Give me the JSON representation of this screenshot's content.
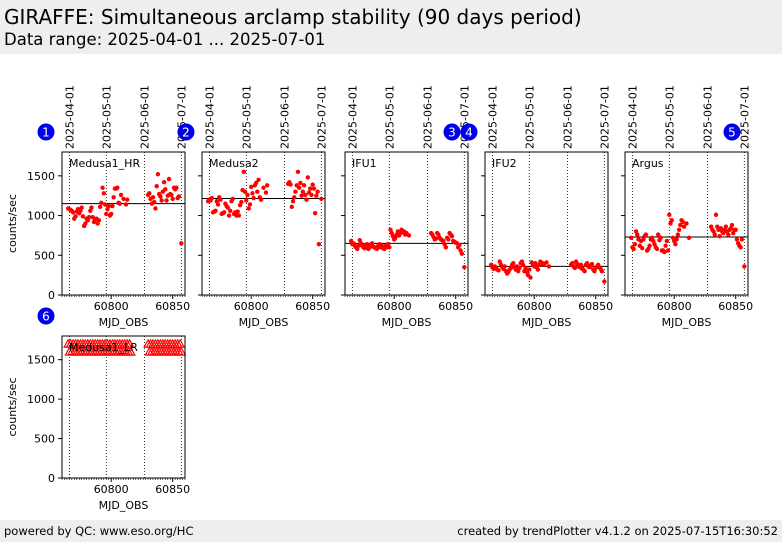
{
  "header": {
    "title": "GIRAFFE: Simultaneous arclamp stability (90 days period)",
    "subtitle": "Data range: 2025-04-01 ... 2025-07-01"
  },
  "footer": {
    "left": "powered by QC: www.eso.org/HC",
    "right": "created by trendPlotter v4.1.2 on 2025-07-15T16:30:52"
  },
  "colors": {
    "points": "#ff0000",
    "badge": "#0000ee",
    "panel_bg": "#eeeeee"
  },
  "chart_data": [
    {
      "type": "scatter",
      "panel": "1",
      "label": "Medusa1_HR",
      "xlabel": "MJD_OBS",
      "ylabel": "counts/sec",
      "xlim": [
        60760,
        60860
      ],
      "ylim": [
        0,
        1800
      ],
      "xticks": [
        60800,
        60850
      ],
      "yticks": [
        0,
        500,
        1000,
        1500
      ],
      "date_ticks": [
        {
          "label": "2025-04-01",
          "mjd": 60766
        },
        {
          "label": "2025-05-01",
          "mjd": 60796
        },
        {
          "label": "2025-06-01",
          "mjd": 60827
        },
        {
          "label": "2025-07-01",
          "mjd": 60857
        }
      ],
      "reference_line": 1150,
      "x": [
        60765,
        60766,
        60767,
        60768,
        60769,
        60770,
        60771,
        60772,
        60773,
        60774,
        60775,
        60776,
        60777,
        60778,
        60779,
        60780,
        60781,
        60782,
        60783,
        60784,
        60785,
        60786,
        60787,
        60788,
        60789,
        60790,
        60791,
        60792,
        60793,
        60794,
        60795,
        60796,
        60797,
        60798,
        60799,
        60800,
        60801,
        60802,
        60803,
        60804,
        60805,
        60806,
        60807,
        60808,
        60810,
        60812,
        60813,
        60830,
        60831,
        60832,
        60833,
        60834,
        60835,
        60836,
        60837,
        60838,
        60839,
        60840,
        60841,
        60842,
        60843,
        60844,
        60845,
        60846,
        60847,
        60848,
        60849,
        60850,
        60851,
        60852,
        60853,
        60854,
        60855,
        60857
      ],
      "y": [
        1090,
        1080,
        1070,
        1060,
        1040,
        960,
        990,
        1050,
        1080,
        1030,
        1060,
        1100,
        990,
        870,
        900,
        960,
        940,
        980,
        1060,
        1100,
        980,
        920,
        950,
        960,
        900,
        940,
        1110,
        1160,
        1350,
        1280,
        1140,
        1020,
        1080,
        1120,
        1000,
        1020,
        1120,
        1230,
        1340,
        1340,
        1350,
        1160,
        1150,
        1260,
        1210,
        1140,
        1200,
        1260,
        1280,
        1210,
        1150,
        1230,
        1170,
        1090,
        1370,
        1520,
        1270,
        1240,
        1190,
        1300,
        1420,
        1330,
        1190,
        1250,
        1460,
        1270,
        1260,
        1210,
        1350,
        1330,
        1350,
        1220,
        1240,
        650
      ]
    },
    {
      "type": "scatter",
      "panel": "2",
      "label": "Medusa2",
      "xlabel": "MJD_OBS",
      "ylabel": "",
      "xlim": [
        60760,
        60860
      ],
      "ylim": [
        0,
        1800
      ],
      "xticks": [
        60800,
        60850
      ],
      "yticks": [
        0,
        500,
        1000,
        1500
      ],
      "date_ticks": [
        {
          "label": "2025-04-01",
          "mjd": 60766
        },
        {
          "label": "2025-05-01",
          "mjd": 60796
        },
        {
          "label": "2025-06-01",
          "mjd": 60827
        },
        {
          "label": "2025-07-01",
          "mjd": 60857
        }
      ],
      "reference_line": 1215,
      "x": [
        60765,
        60766,
        60767,
        60768,
        60769,
        60770,
        60771,
        60772,
        60773,
        60774,
        60775,
        60776,
        60777,
        60778,
        60779,
        60780,
        60781,
        60782,
        60783,
        60784,
        60785,
        60786,
        60787,
        60788,
        60789,
        60790,
        60791,
        60792,
        60793,
        60794,
        60795,
        60796,
        60797,
        60798,
        60799,
        60800,
        60801,
        60802,
        60803,
        60804,
        60805,
        60806,
        60807,
        60808,
        60810,
        60812,
        60813,
        60830,
        60831,
        60832,
        60833,
        60834,
        60835,
        60836,
        60837,
        60838,
        60839,
        60840,
        60841,
        60842,
        60843,
        60844,
        60845,
        60846,
        60847,
        60848,
        60849,
        60850,
        60851,
        60852,
        60853,
        60854,
        60855,
        60857
      ],
      "y": [
        1180,
        1200,
        1190,
        1220,
        1040,
        1050,
        1060,
        1180,
        1140,
        1230,
        1200,
        1020,
        1030,
        1040,
        1150,
        1120,
        1100,
        1000,
        1060,
        1180,
        1210,
        1020,
        1040,
        1000,
        1050,
        1000,
        1130,
        1170,
        1320,
        1550,
        1300,
        1190,
        1260,
        1090,
        1140,
        1360,
        1280,
        1220,
        1380,
        1410,
        1300,
        1450,
        1230,
        1200,
        1350,
        1290,
        1380,
        1400,
        1420,
        1390,
        1110,
        1180,
        1230,
        1300,
        1380,
        1550,
        1350,
        1410,
        1250,
        1300,
        1380,
        1260,
        1200,
        1480,
        1290,
        1340,
        1260,
        1390,
        1340,
        1030,
        1250,
        1300,
        640,
        1210
      ]
    },
    {
      "type": "scatter",
      "panel": "3",
      "label": "IFU1",
      "xlabel": "MJD_OBS",
      "ylabel": "",
      "xlim": [
        60760,
        60860
      ],
      "ylim": [
        0,
        1800
      ],
      "xticks": [
        60800,
        60850
      ],
      "yticks": [
        0,
        500,
        1000,
        1500
      ],
      "date_ticks": [
        {
          "label": "2025-04-01",
          "mjd": 60766
        },
        {
          "label": "2025-05-01",
          "mjd": 60796
        },
        {
          "label": "2025-06-01",
          "mjd": 60827
        },
        {
          "label": "2025-07-01",
          "mjd": 60857
        }
      ],
      "reference_line": 650,
      "x": [
        60765,
        60766,
        60767,
        60768,
        60769,
        60770,
        60771,
        60772,
        60773,
        60774,
        60775,
        60776,
        60777,
        60778,
        60779,
        60780,
        60781,
        60782,
        60783,
        60784,
        60785,
        60786,
        60787,
        60788,
        60789,
        60790,
        60791,
        60792,
        60793,
        60794,
        60795,
        60796,
        60797,
        60798,
        60799,
        60800,
        60801,
        60802,
        60803,
        60804,
        60805,
        60806,
        60807,
        60808,
        60809,
        60810,
        60812,
        60830,
        60831,
        60832,
        60833,
        60834,
        60835,
        60836,
        60837,
        60838,
        60839,
        60840,
        60841,
        60842,
        60843,
        60844,
        60845,
        60846,
        60847,
        60848,
        60849,
        60850,
        60851,
        60852,
        60853,
        60854,
        60855,
        60857
      ],
      "y": [
        680,
        640,
        650,
        620,
        600,
        580,
        620,
        690,
        650,
        620,
        600,
        590,
        620,
        640,
        580,
        600,
        630,
        650,
        610,
        600,
        590,
        580,
        620,
        640,
        600,
        620,
        590,
        580,
        620,
        600,
        640,
        600,
        820,
        780,
        740,
        700,
        720,
        760,
        800,
        750,
        780,
        820,
        790,
        800,
        760,
        780,
        750,
        780,
        760,
        730,
        700,
        710,
        780,
        760,
        720,
        700,
        690,
        680,
        640,
        600,
        720,
        700,
        780,
        760,
        740,
        680,
        670,
        660,
        650,
        600,
        630,
        560,
        520,
        350
      ]
    },
    {
      "type": "scatter",
      "panel": "4",
      "label": "IFU2",
      "xlabel": "MJD_OBS",
      "ylabel": "",
      "xlim": [
        60760,
        60860
      ],
      "ylim": [
        0,
        1800
      ],
      "xticks": [
        60800,
        60850
      ],
      "yticks": [
        0,
        500,
        1000,
        1500
      ],
      "date_ticks": [
        {
          "label": "2025-04-01",
          "mjd": 60766
        },
        {
          "label": "2025-05-01",
          "mjd": 60796
        },
        {
          "label": "2025-06-01",
          "mjd": 60827
        },
        {
          "label": "2025-07-01",
          "mjd": 60857
        }
      ],
      "reference_line": 360,
      "x": [
        60765,
        60766,
        60767,
        60768,
        60769,
        60770,
        60771,
        60772,
        60773,
        60774,
        60775,
        60776,
        60777,
        60778,
        60779,
        60780,
        60781,
        60782,
        60783,
        60784,
        60785,
        60786,
        60787,
        60788,
        60789,
        60790,
        60791,
        60792,
        60793,
        60794,
        60795,
        60796,
        60797,
        60798,
        60799,
        60800,
        60801,
        60802,
        60803,
        60804,
        60805,
        60806,
        60807,
        60808,
        60810,
        60812,
        60830,
        60831,
        60832,
        60833,
        60834,
        60835,
        60836,
        60837,
        60838,
        60839,
        60840,
        60841,
        60842,
        60843,
        60844,
        60845,
        60846,
        60847,
        60848,
        60849,
        60850,
        60851,
        60852,
        60853,
        60854,
        60855,
        60857
      ],
      "y": [
        380,
        350,
        330,
        360,
        340,
        320,
        310,
        420,
        380,
        350,
        330,
        360,
        300,
        270,
        290,
        320,
        340,
        380,
        400,
        350,
        320,
        360,
        300,
        340,
        400,
        420,
        380,
        300,
        340,
        290,
        250,
        320,
        220,
        410,
        380,
        360,
        400,
        350,
        320,
        380,
        420,
        390,
        400,
        380,
        410,
        360,
        380,
        400,
        360,
        340,
        420,
        390,
        360,
        350,
        380,
        330,
        320,
        300,
        380,
        400,
        360,
        350,
        370,
        390,
        320,
        300,
        340,
        360,
        380,
        350,
        330,
        300,
        170
      ]
    },
    {
      "type": "scatter",
      "panel": "5",
      "label": "Argus",
      "xlabel": "MJD_OBS",
      "ylabel": "",
      "xlim": [
        60760,
        60860
      ],
      "ylim": [
        0,
        1800
      ],
      "xticks": [
        60800,
        60850
      ],
      "yticks": [
        0,
        500,
        1000,
        1500
      ],
      "date_ticks": [
        {
          "label": "2025-04-01",
          "mjd": 60766
        },
        {
          "label": "2025-05-01",
          "mjd": 60796
        },
        {
          "label": "2025-06-01",
          "mjd": 60827
        },
        {
          "label": "2025-07-01",
          "mjd": 60857
        }
      ],
      "reference_line": 730,
      "x": [
        60765,
        60766,
        60767,
        60768,
        60769,
        60770,
        60771,
        60772,
        60773,
        60774,
        60775,
        60776,
        60777,
        60778,
        60779,
        60780,
        60781,
        60782,
        60783,
        60784,
        60785,
        60786,
        60787,
        60788,
        60789,
        60790,
        60791,
        60792,
        60793,
        60794,
        60795,
        60796,
        60797,
        60798,
        60799,
        60800,
        60801,
        60802,
        60803,
        60804,
        60805,
        60806,
        60807,
        60808,
        60810,
        60812,
        60830,
        60831,
        60832,
        60833,
        60834,
        60835,
        60836,
        60837,
        60838,
        60839,
        60840,
        60841,
        60842,
        60843,
        60844,
        60845,
        60846,
        60847,
        60848,
        60849,
        60850,
        60851,
        60852,
        60853,
        60854,
        60855,
        60857
      ],
      "y": [
        720,
        600,
        580,
        640,
        800,
        760,
        700,
        620,
        680,
        590,
        700,
        740,
        760,
        560,
        580,
        620,
        700,
        720,
        680,
        640,
        600,
        580,
        760,
        690,
        720,
        560,
        560,
        540,
        620,
        680,
        560,
        1010,
        900,
        940,
        720,
        680,
        640,
        700,
        760,
        820,
        880,
        940,
        920,
        860,
        900,
        720,
        860,
        820,
        800,
        760,
        1010,
        860,
        820,
        740,
        840,
        800,
        780,
        820,
        860,
        800,
        760,
        820,
        840,
        880,
        780,
        820,
        820,
        700,
        650,
        620,
        600,
        700,
        360
      ]
    },
    {
      "type": "scatter",
      "panel": "6",
      "label": "Medusa1_LR",
      "xlabel": "MJD_OBS",
      "ylabel": "counts/sec",
      "xlim": [
        60760,
        60860
      ],
      "ylim": [
        0,
        1800
      ],
      "xticks": [
        60800,
        60850
      ],
      "yticks": [
        0,
        500,
        1000,
        1500
      ],
      "date_ticks": [
        {
          "label": "2025-04-01",
          "mjd": 60766
        },
        {
          "label": "2025-05-01",
          "mjd": 60796
        },
        {
          "label": "2025-06-01",
          "mjd": 60827
        },
        {
          "label": "2025-07-01",
          "mjd": 60857
        }
      ],
      "reference_line": null,
      "marker": "open-triangle-up",
      "x": [
        60765,
        60766,
        60767,
        60768,
        60769,
        60770,
        60771,
        60772,
        60773,
        60774,
        60775,
        60776,
        60777,
        60778,
        60779,
        60780,
        60781,
        60782,
        60783,
        60784,
        60785,
        60786,
        60787,
        60788,
        60789,
        60790,
        60791,
        60792,
        60793,
        60794,
        60795,
        60796,
        60797,
        60798,
        60799,
        60800,
        60801,
        60802,
        60803,
        60804,
        60805,
        60806,
        60807,
        60808,
        60809,
        60810,
        60811,
        60812,
        60813,
        60814,
        60815,
        60816,
        60830,
        60831,
        60832,
        60833,
        60834,
        60835,
        60836,
        60837,
        60838,
        60839,
        60840,
        60841,
        60842,
        60843,
        60844,
        60845,
        60846,
        60847,
        60848,
        60849,
        60850,
        60851,
        60852,
        60853,
        60854,
        60855,
        60856,
        60857
      ],
      "y": [
        1700,
        1600,
        1700,
        1600,
        1700,
        1600,
        1700,
        1600,
        1700,
        1600,
        1700,
        1600,
        1700,
        1600,
        1700,
        1600,
        1700,
        1600,
        1700,
        1600,
        1700,
        1600,
        1700,
        1600,
        1700,
        1600,
        1700,
        1600,
        1700,
        1600,
        1700,
        1600,
        1700,
        1600,
        1700,
        1600,
        1700,
        1600,
        1700,
        1600,
        1700,
        1600,
        1700,
        1600,
        1700,
        1600,
        1700,
        1600,
        1700,
        1600,
        1700,
        1600,
        1700,
        1600,
        1700,
        1600,
        1700,
        1600,
        1700,
        1600,
        1700,
        1600,
        1700,
        1600,
        1700,
        1600,
        1700,
        1600,
        1700,
        1600,
        1700,
        1600,
        1700,
        1600,
        1700,
        1600,
        1700,
        1600,
        1700,
        1600
      ]
    }
  ]
}
